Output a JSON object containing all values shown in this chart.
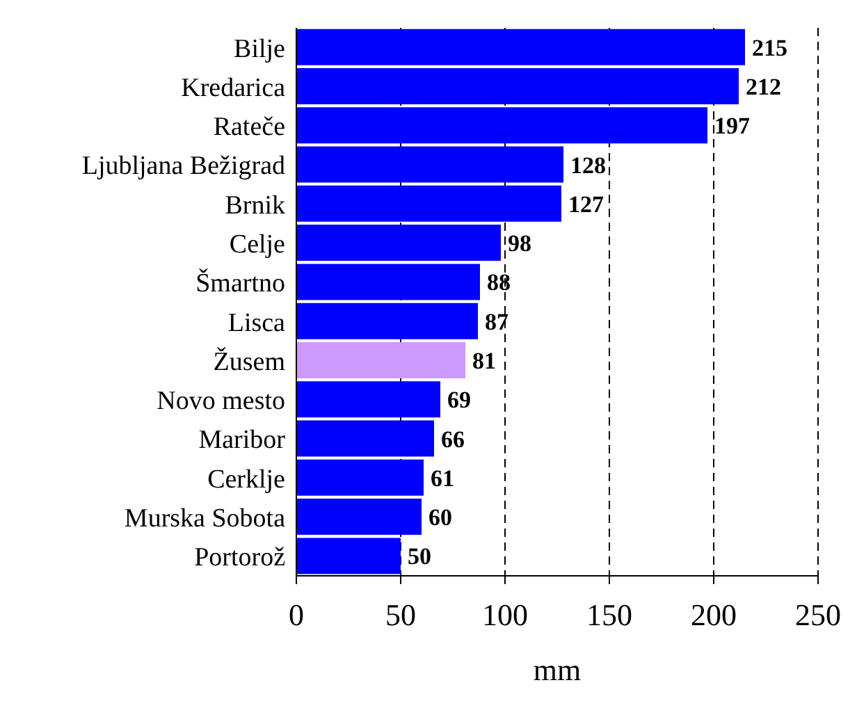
{
  "chart_data": {
    "type": "bar",
    "orientation": "horizontal",
    "xlabel": "mm",
    "categories": [
      "Bilje",
      "Kredarica",
      "Rateče",
      "Ljubljana Bežigrad",
      "Brnik",
      "Celje",
      "Šmartno",
      "Lisca",
      "Žusem",
      "Novo mesto",
      "Maribor",
      "Cerklje",
      "Murska Sobota",
      "Portorož"
    ],
    "values": [
      215,
      212,
      197,
      128,
      127,
      98,
      88,
      87,
      81,
      69,
      66,
      61,
      60,
      50
    ],
    "colors": [
      "#0000ff",
      "#0000ff",
      "#0000ff",
      "#0000ff",
      "#0000ff",
      "#0000ff",
      "#0000ff",
      "#0000ff",
      "#cc99ff",
      "#0000ff",
      "#0000ff",
      "#0000ff",
      "#0000ff",
      "#0000ff"
    ],
    "xlim": [
      0,
      250
    ],
    "xticks": [
      0,
      50,
      100,
      150,
      200,
      250
    ],
    "grid": "x",
    "data_labels": true
  }
}
